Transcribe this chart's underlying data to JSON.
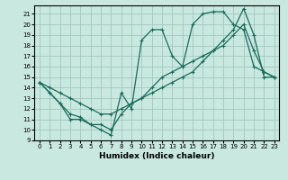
{
  "xlabel": "Humidex (Indice chaleur)",
  "bg_color": "#c8e8e0",
  "grid_color": "#a8ccc4",
  "line_color": "#1a6b5a",
  "xlim": [
    -0.5,
    23.5
  ],
  "ylim": [
    9,
    21.8
  ],
  "xticks": [
    0,
    1,
    2,
    3,
    4,
    5,
    6,
    7,
    8,
    9,
    10,
    11,
    12,
    13,
    14,
    15,
    16,
    17,
    18,
    19,
    20,
    21,
    22,
    23
  ],
  "yticks": [
    9,
    10,
    11,
    12,
    13,
    14,
    15,
    16,
    17,
    18,
    19,
    20,
    21
  ],
  "line1_x": [
    0,
    1,
    2,
    3,
    4,
    5,
    6,
    7,
    8,
    9,
    10,
    11,
    12,
    13,
    14,
    15,
    16,
    17,
    18,
    19,
    20,
    21,
    22,
    23
  ],
  "line1_y": [
    14.5,
    13.5,
    12.5,
    11.0,
    11.0,
    10.5,
    10.0,
    9.5,
    13.5,
    12.0,
    18.5,
    19.5,
    19.5,
    17.0,
    16.0,
    20.0,
    21.0,
    21.2,
    21.2,
    20.0,
    19.5,
    16.0,
    15.5,
    15.0
  ],
  "line2_x": [
    0,
    1,
    2,
    3,
    4,
    5,
    6,
    7,
    8,
    9,
    10,
    11,
    12,
    13,
    14,
    15,
    16,
    17,
    18,
    19,
    20,
    21,
    22,
    23
  ],
  "line2_y": [
    14.5,
    13.5,
    12.5,
    11.5,
    11.2,
    10.5,
    10.5,
    10.0,
    11.5,
    12.5,
    13.0,
    14.0,
    15.0,
    15.5,
    16.0,
    16.5,
    17.0,
    17.5,
    18.0,
    19.0,
    20.0,
    17.5,
    15.5,
    15.0
  ],
  "line3_x": [
    0,
    1,
    2,
    3,
    4,
    5,
    6,
    7,
    8,
    9,
    10,
    11,
    12,
    13,
    14,
    15,
    16,
    17,
    18,
    19,
    20,
    21,
    22,
    23
  ],
  "line3_y": [
    14.5,
    14.0,
    13.5,
    13.0,
    12.5,
    12.0,
    11.5,
    11.5,
    12.0,
    12.5,
    13.0,
    13.5,
    14.0,
    14.5,
    15.0,
    15.5,
    16.5,
    17.5,
    18.5,
    19.5,
    21.5,
    19.0,
    15.0,
    15.0
  ]
}
